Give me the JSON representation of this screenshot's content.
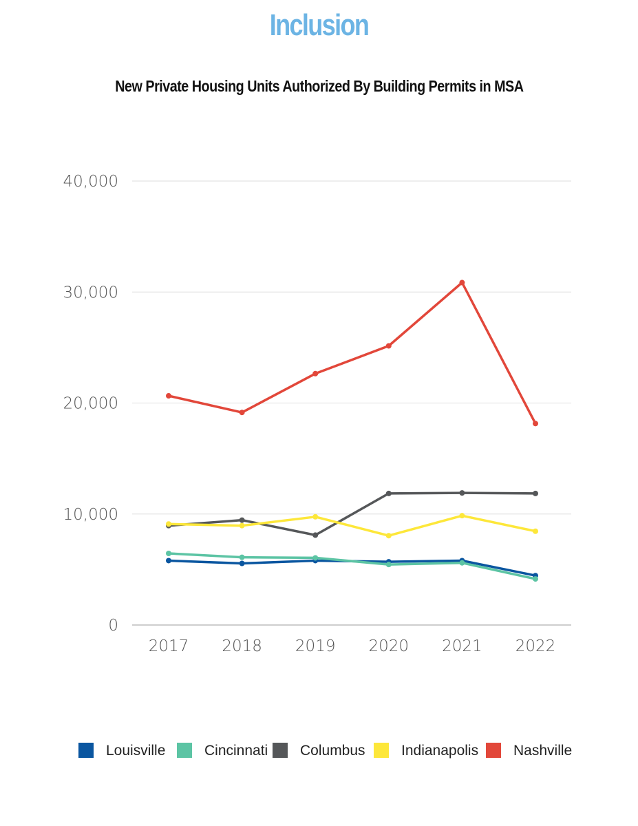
{
  "heading": "Inclusion",
  "chart_data": {
    "type": "line",
    "title": "New Private Housing Units Authorized By Building Permits in MSA",
    "xlabel": "",
    "ylabel": "",
    "categories": [
      "2017",
      "2018",
      "2019",
      "2020",
      "2021",
      "2022"
    ],
    "ylim": [
      0,
      40000
    ],
    "yticks": [
      0,
      10000,
      20000,
      30000,
      40000
    ],
    "ytick_labels": [
      "0",
      "10,000",
      "20,000",
      "30,000",
      "40,000"
    ],
    "grid": true,
    "legend_position": "bottom",
    "series": [
      {
        "name": "Louisville",
        "color": "#0a56a0",
        "values": [
          5800,
          5550,
          5800,
          5700,
          5800,
          4450
        ]
      },
      {
        "name": "Cincinnati",
        "color": "#5cc4a4",
        "values": [
          6450,
          6100,
          6050,
          5450,
          5600,
          4150
        ]
      },
      {
        "name": "Columbus",
        "color": "#555759",
        "values": [
          8950,
          9450,
          8100,
          11850,
          11900,
          11850
        ]
      },
      {
        "name": "Indianapolis",
        "color": "#fde73a",
        "values": [
          9100,
          8950,
          9750,
          8050,
          9850,
          8450
        ]
      },
      {
        "name": "Nashville",
        "color": "#e2473a",
        "values": [
          20650,
          19150,
          22650,
          25150,
          30850,
          18150
        ]
      }
    ]
  }
}
